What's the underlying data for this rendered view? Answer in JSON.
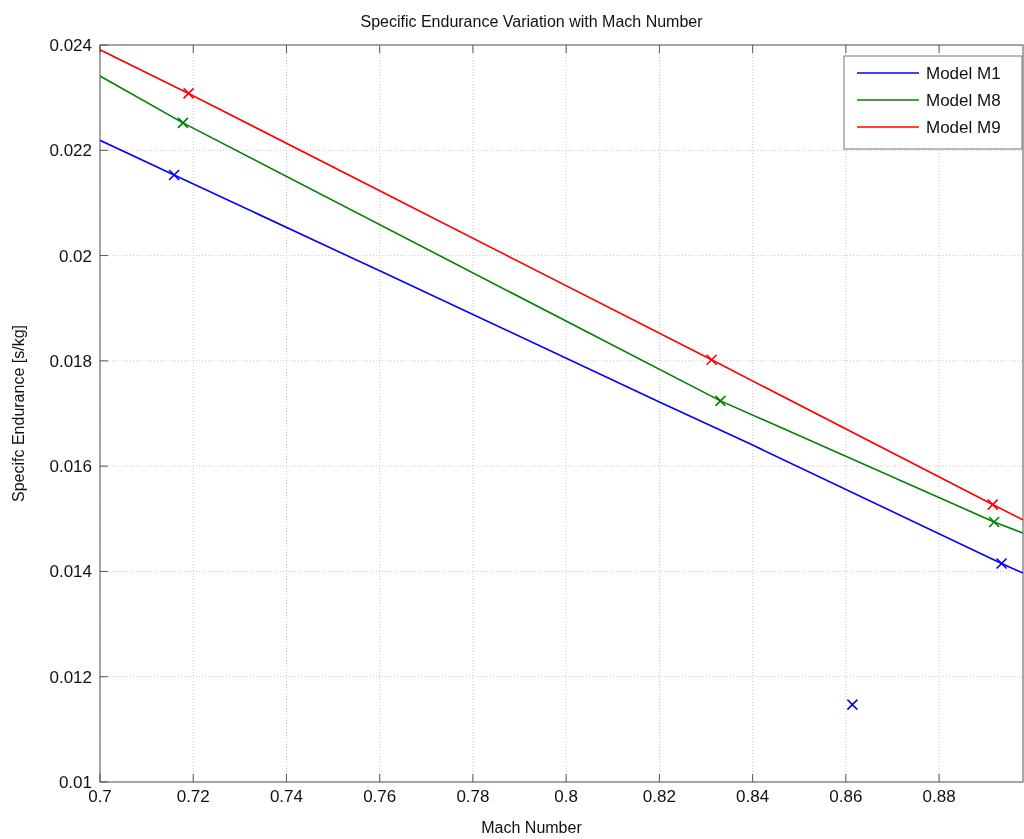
{
  "chart_data": {
    "type": "line",
    "title": "Specific Endurance Variation with Mach Number",
    "xlabel": "Mach Number",
    "ylabel": "Specifc Endurance [s/kg]",
    "xlim": [
      0.7,
      0.898
    ],
    "xticks": [
      0.7,
      0.72,
      0.74,
      0.76,
      0.78,
      0.8,
      0.82,
      0.84,
      0.86,
      0.88
    ],
    "ylim": [
      0.01,
      0.024
    ],
    "yticks": [
      0.01,
      0.012,
      0.014,
      0.016,
      0.018,
      0.02,
      0.022,
      0.024
    ],
    "grid": true,
    "legend": "top right",
    "line_style": "solid",
    "marker": "none",
    "series": [
      {
        "name": "Model M1",
        "color": "#0000ff",
        "x": [
          0.7,
          0.7159,
          0.76,
          0.82,
          0.84,
          0.8934,
          0.898
        ],
        "values": [
          0.02219,
          0.02153,
          0.01971,
          0.01722,
          0.0164,
          0.01415,
          0.01397
        ]
      },
      {
        "name": "Model M8",
        "color": "#008000",
        "x": [
          0.7,
          0.7178,
          0.8331,
          0.8918,
          0.898
        ],
        "values": [
          0.02341,
          0.02252,
          0.01724,
          0.01494,
          0.01473
        ]
      },
      {
        "name": "Model M9",
        "color": "#ff0000",
        "x": [
          0.7,
          0.719,
          0.8312,
          0.8915,
          0.898
        ],
        "values": [
          0.02391,
          0.02308,
          0.01802,
          0.01527,
          0.01498
        ]
      },
      {
        "type": "scatter",
        "marker": "cross",
        "color": "#0000ff",
        "x": [
          0.7159,
          0.8934,
          0.8614
        ],
        "values": [
          0.02153,
          0.01415,
          0.01147
        ]
      },
      {
        "type": "scatter",
        "marker": "cross",
        "color": "#008000",
        "x": [
          0.7178,
          0.8331,
          0.8918
        ],
        "values": [
          0.02252,
          0.01724,
          0.01494
        ]
      },
      {
        "type": "scatter",
        "marker": "cross",
        "color": "#ff0000",
        "x": [
          0.719,
          0.8312,
          0.8915
        ],
        "values": [
          0.02308,
          0.01802,
          0.01527
        ]
      }
    ]
  }
}
